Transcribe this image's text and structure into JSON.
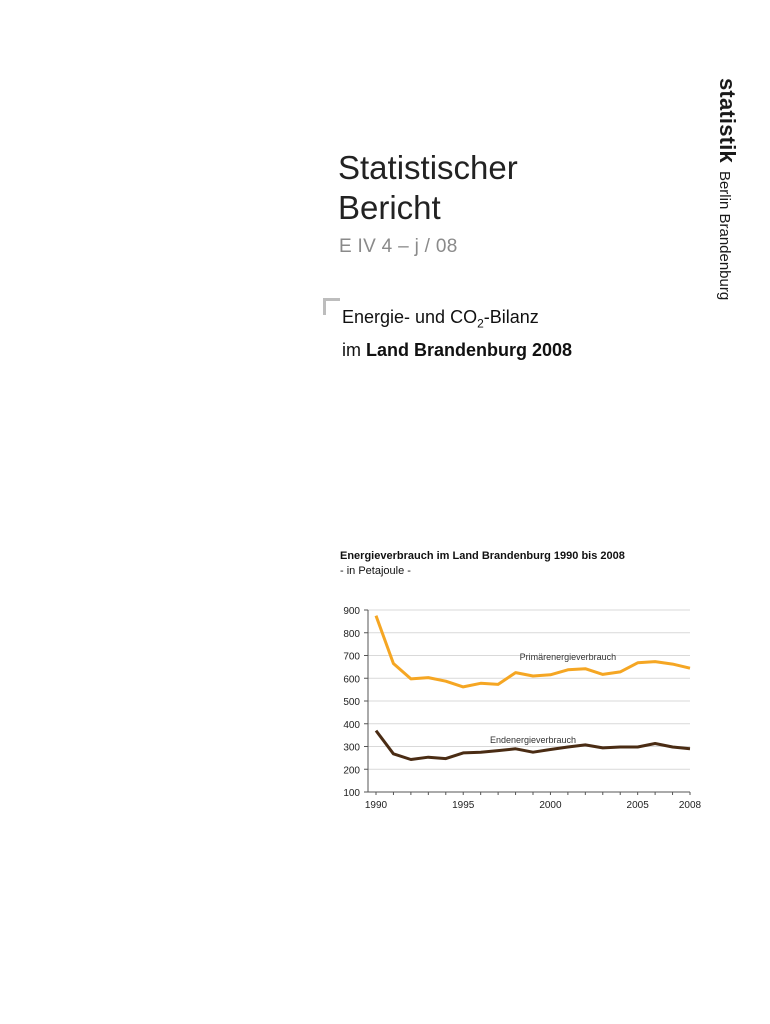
{
  "brand": {
    "name": "statistik",
    "region": "Berlin Brandenburg"
  },
  "header": {
    "title_line1": "Statistischer",
    "title_line2": "Bericht",
    "report_code": "E IV 4 – j / 08"
  },
  "subtitle": {
    "line1_a": "Energie- und CO",
    "line1_sub": "2",
    "line1_b": "-Bilanz",
    "line2_prefix": "im ",
    "line2_bold": "Land Brandenburg 2008"
  },
  "chart_data": {
    "type": "line",
    "title": "Energieverbrauch im Land Brandenburg 1990 bis 2008",
    "subtitle": "- in Petajoule -",
    "xlabel": "",
    "ylabel": "",
    "ylim": [
      100,
      900
    ],
    "xlim": [
      1990,
      2008
    ],
    "yticks": [
      100,
      200,
      300,
      400,
      500,
      600,
      700,
      800,
      900
    ],
    "xticks": [
      1990,
      1995,
      2000,
      2005,
      2008
    ],
    "grid": true,
    "x": [
      1990,
      1991,
      1992,
      1993,
      1994,
      1995,
      1996,
      1997,
      1998,
      1999,
      2000,
      2001,
      2002,
      2003,
      2004,
      2005,
      2006,
      2007,
      2008
    ],
    "series": [
      {
        "name": "Primärenergieverbrauch",
        "color": "#f5a623",
        "values": [
          875,
          665,
          597,
          603,
          587,
          562,
          578,
          573,
          625,
          610,
          615,
          637,
          642,
          617,
          628,
          668,
          673,
          662,
          644
        ]
      },
      {
        "name": "Endenergieverbrauch",
        "color": "#4a2c14",
        "values": [
          370,
          268,
          243,
          253,
          247,
          272,
          275,
          282,
          290,
          275,
          287,
          298,
          307,
          294,
          298,
          298,
          313,
          298,
          290
        ]
      }
    ]
  }
}
